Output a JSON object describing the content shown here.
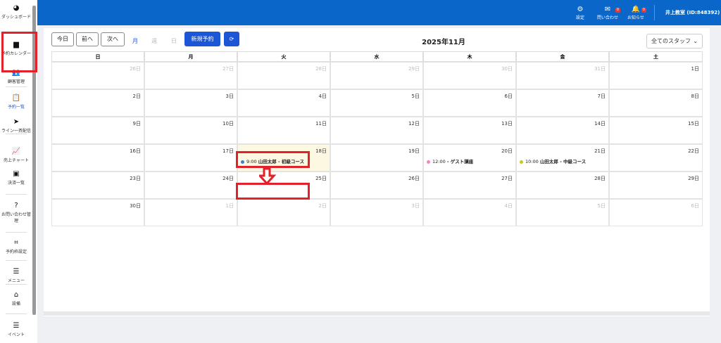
{
  "sidebar": {
    "items": [
      {
        "label": "ダッシュボード",
        "icon": "gauge-icon"
      },
      {
        "label": "予約カレンダー",
        "icon": "calendar-icon"
      },
      {
        "label": "顧客管理",
        "icon": "users-icon"
      },
      {
        "label": "予約一覧",
        "icon": "clipboard-icon"
      },
      {
        "label": "ライン一斉配信",
        "icon": "send-icon"
      },
      {
        "label": "売上チャート",
        "icon": "chart-icon"
      },
      {
        "label": "決済一覧",
        "icon": "money-icon"
      },
      {
        "label": "お問い合わせ管理",
        "icon": "question-icon"
      },
      {
        "label": "予約枠設定",
        "icon": "crop-icon"
      },
      {
        "label": "メニュー",
        "icon": "list-icon"
      },
      {
        "label": "設備",
        "icon": "inbox-icon"
      },
      {
        "label": "イベント",
        "icon": "list-icon"
      }
    ]
  },
  "header": {
    "settings": "設定",
    "inquiries": "問い合わせ",
    "inquiries_badge": "0",
    "notifications": "お知らせ",
    "notifications_badge": "0",
    "user": "井上教室 (ID:848392)",
    "color": "#0a66c8"
  },
  "toolbar": {
    "today": "今日",
    "prev": "前へ",
    "next": "次へ",
    "month": "月",
    "week": "週",
    "day": "日",
    "new_booking": "新規予約",
    "title": "2025年11月",
    "staff": "全てのスタッフ"
  },
  "calendar": {
    "weekdays": [
      "日",
      "月",
      "火",
      "水",
      "木",
      "金",
      "土"
    ],
    "weeks": [
      [
        "26日",
        "27日",
        "28日",
        "29日",
        "30日",
        "31日",
        "1日"
      ],
      [
        "2日",
        "3日",
        "4日",
        "5日",
        "6日",
        "7日",
        "8日"
      ],
      [
        "9日",
        "10日",
        "11日",
        "12日",
        "13日",
        "14日",
        "15日"
      ],
      [
        "16日",
        "17日",
        "18日",
        "19日",
        "20日",
        "21日",
        "22日"
      ],
      [
        "23日",
        "24日",
        "25日",
        "26日",
        "27日",
        "28日",
        "29日"
      ],
      [
        "30日",
        "1日",
        "2日",
        "3日",
        "4日",
        "5日",
        "6日"
      ]
    ],
    "events": [
      {
        "time": "9:00",
        "title": "山田太郎 - 初級コース",
        "color": "#3b82d6"
      },
      {
        "time": "12:00",
        "title": "- ゲスト講座",
        "color": "#f08ac0"
      },
      {
        "time": "10:00",
        "title": "山田太郎 - 中級コース",
        "color": "#c8c81e"
      }
    ]
  }
}
